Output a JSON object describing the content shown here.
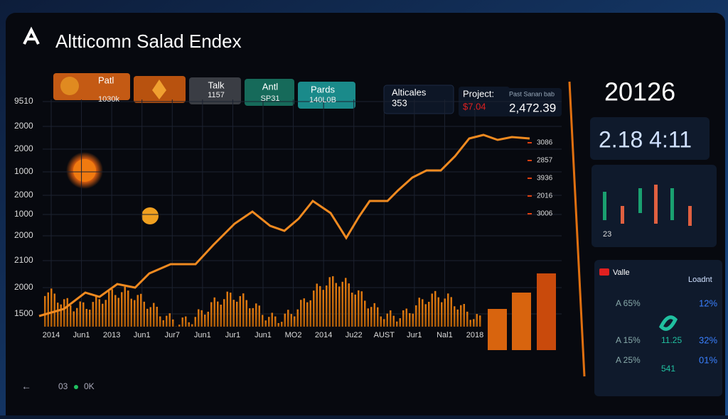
{
  "header": {
    "title": "Altticomn Salad Endex"
  },
  "tabs": [
    {
      "label": "Patl",
      "value": "1030k"
    },
    {
      "label": "Talk",
      "value": "1157"
    },
    {
      "label": "Antl",
      "value": "SP31"
    },
    {
      "label": "Pards",
      "value": "140L0B"
    }
  ],
  "stats": [
    {
      "label": "Alticales",
      "value": "353"
    },
    {
      "label": "Project:",
      "value": "$7.04"
    },
    {
      "label": "Past Sanan bab",
      "value": "2,472.39"
    }
  ],
  "main_chart": {
    "y_labels": [
      "9510",
      "2000",
      "2000",
      "1000",
      "2000",
      "1000",
      "2000",
      "2100",
      "2000",
      "1500"
    ],
    "x_labels": [
      "2014",
      "Jun1",
      "2013",
      "Jun1",
      "Jur7",
      "Jun1",
      "Jur1",
      "Jun1",
      "MO2",
      "2014",
      "Ju22",
      "AUST",
      "Jur1",
      "Nal1",
      "2018"
    ],
    "right_labels": [
      "3086",
      "2857",
      "3936",
      "2016",
      "3006"
    ]
  },
  "side_panel": {
    "year": "20126",
    "time": "2.18 4:11",
    "small": "23"
  },
  "lower_panel": {
    "left_title": "Valle",
    "right_title": "Loadnt",
    "rows": [
      [
        "A 65%",
        "",
        "12%"
      ],
      [
        "A 15%",
        "11.25",
        "32%"
      ],
      [
        "A 25%",
        "541",
        "01%"
      ]
    ]
  },
  "footer": {
    "left": "03",
    "right": "0K"
  }
}
